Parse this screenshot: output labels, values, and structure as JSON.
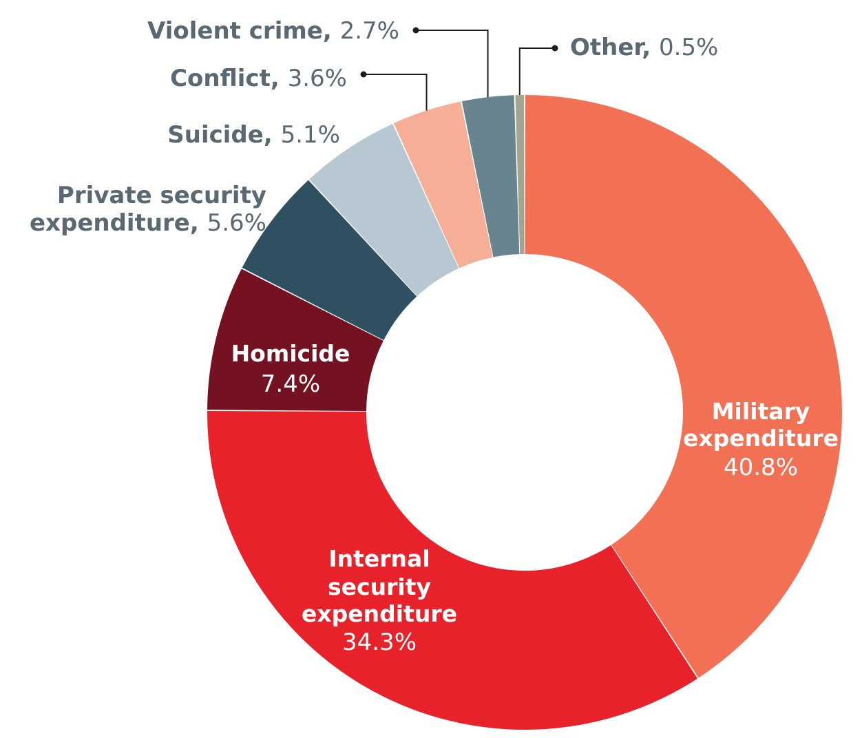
{
  "chart_data": {
    "type": "pie",
    "donut": true,
    "slices": [
      {
        "label": "Military expenditure",
        "value_text": "40.8%",
        "value": 40.8,
        "color": "#F27054"
      },
      {
        "label": "Internal security expenditure",
        "value_text": "34.3%",
        "value": 34.3,
        "color": "#E8222A"
      },
      {
        "label": "Homicide",
        "value_text": "7.4%",
        "value": 7.4,
        "color": "#751221"
      },
      {
        "label": "Private security expenditure",
        "value_text": "5.6%",
        "value": 5.6,
        "color": "#2E5061"
      },
      {
        "label": "Suicide",
        "value_text": "5.1%",
        "value": 5.1,
        "color": "#B8C8D3"
      },
      {
        "label": "Conflict",
        "value_text": "3.6%",
        "value": 3.6,
        "color": "#F6AE96"
      },
      {
        "label": "Violent crime",
        "value_text": "2.7%",
        "value": 2.7,
        "color": "#67848F"
      },
      {
        "label": "Other",
        "value_text": "0.5%",
        "value": 0.5,
        "color": "#A3A590"
      }
    ],
    "label_color": "#5A6872"
  }
}
